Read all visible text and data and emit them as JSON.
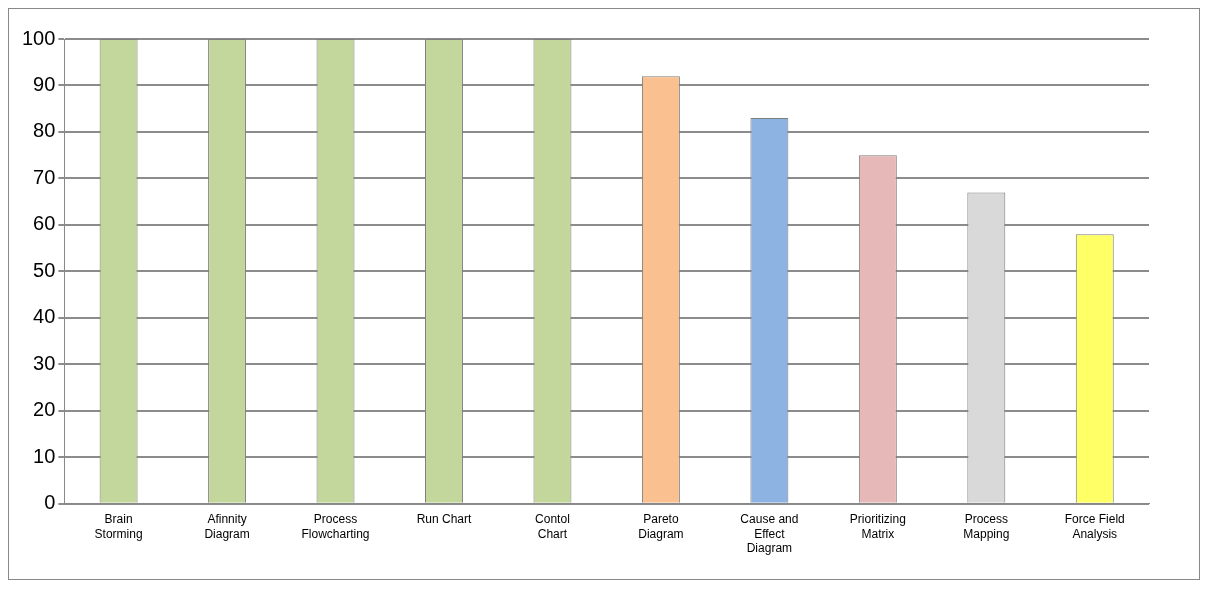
{
  "chart_data": {
    "type": "bar",
    "categories": [
      "Brain Storming",
      "Afinnity Diagram",
      "Process Flowcharting",
      "Run Chart",
      "Contol Chart",
      "Pareto Diagram",
      "Cause and Effect Diagram",
      "Prioritizing Matrix",
      "Process Mapping",
      "Force Field Analysis"
    ],
    "values": [
      100,
      100,
      100,
      100,
      100,
      92,
      83,
      75,
      67,
      58
    ],
    "colors": [
      "#c3d69b",
      "#c3d69b",
      "#c3d69b",
      "#c3d69b",
      "#c3d69b",
      "#fac090",
      "#8db3e2",
      "#e6b9b8",
      "#d9d9d9",
      "#ffff66"
    ],
    "ylim": [
      0,
      100
    ],
    "yticks": [
      0,
      10,
      20,
      30,
      40,
      50,
      60,
      70,
      80,
      90,
      100
    ],
    "grid": "y",
    "legend": false
  }
}
